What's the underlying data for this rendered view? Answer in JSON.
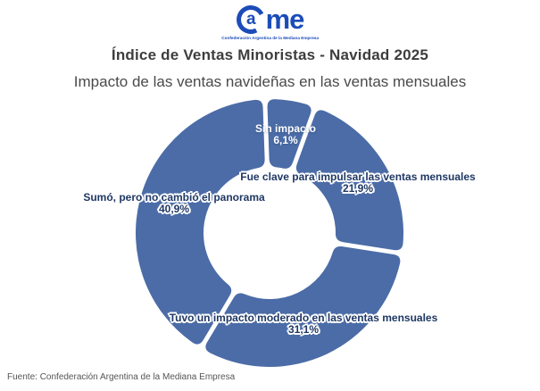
{
  "logo": {
    "circle_letter": "a",
    "rest": "me",
    "tagline": "Confederación Argentina de la Mediana Empresa",
    "color": "#1c4cb8"
  },
  "header": {
    "title": "Índice de Ventas Minoristas - Navidad 2025",
    "subtitle": "Impacto de las ventas navideñas en las ventas mensuales"
  },
  "chart_data": {
    "type": "pie",
    "variant": "donut",
    "title": "Índice de Ventas Minoristas - Navidad 2025",
    "subtitle": "Impacto de las ventas navideñas en las ventas mensuales",
    "direction": "clockwise",
    "start_angle_deg": -2,
    "slice_color": "#4b6ca7",
    "label_color": "#1f3864",
    "categories": [
      "Sin impacto",
      "Fue clave para impulsar las ventas mensuales",
      "Tuvo un impacto moderado en las ventas mensuales",
      "Sumó, pero no cambió el panorama"
    ],
    "values": [
      6.1,
      21.9,
      31.1,
      40.9
    ],
    "labels": [
      {
        "text": "Sin impacto",
        "value_label": "6,1%",
        "style": "white"
      },
      {
        "text": "Fue clave para impulsar las ventas mensuales",
        "value_label": "21,9%",
        "style": "navy-halo"
      },
      {
        "text": "Tuvo un impacto moderado en las ventas mensuales",
        "value_label": "31,1%",
        "style": "navy-halo"
      },
      {
        "text": "Sumó, pero no cambió el panorama",
        "value_label": "40,9%",
        "style": "navy-halo"
      }
    ]
  },
  "footer": {
    "source": "Fuente: Confederación Argentina de la Mediana Empresa"
  }
}
